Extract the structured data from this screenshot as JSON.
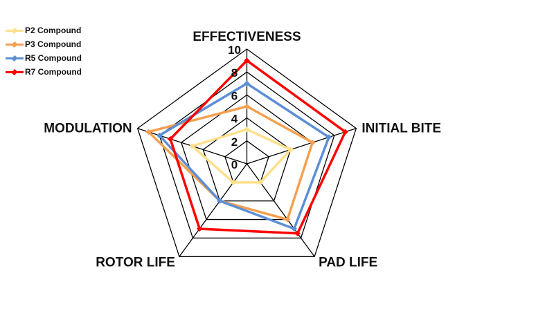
{
  "chart_data": {
    "type": "radar",
    "categories": [
      "EFFECTIVENESS",
      "INITIAL BITE",
      "PAD LIFE",
      "ROTOR LIFE",
      "MODULATION"
    ],
    "rlim": [
      0,
      10
    ],
    "ticks": [
      "0",
      "2",
      "4",
      "6",
      "8",
      "10"
    ],
    "grid": true,
    "legend_position": "top-left",
    "series": [
      {
        "name": "P2 Compound",
        "color": "#FFE08A",
        "values": [
          3,
          4,
          2,
          2,
          5
        ]
      },
      {
        "name": "P3 Compound",
        "color": "#F4A050",
        "values": [
          5,
          6,
          6,
          4,
          9
        ]
      },
      {
        "name": "R5 Compound",
        "color": "#5B8FD6",
        "values": [
          7,
          7.5,
          7,
          4,
          8
        ]
      },
      {
        "name": "R7 Compound",
        "color": "#FF0000",
        "values": [
          9,
          9,
          7.5,
          7,
          7
        ]
      }
    ]
  }
}
